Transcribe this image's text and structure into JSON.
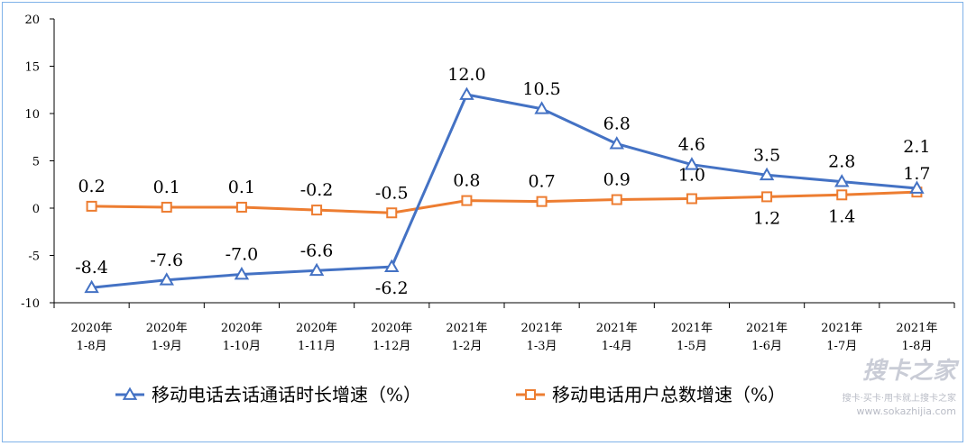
{
  "chart_data": {
    "type": "line",
    "categories": [
      [
        "2020年",
        "1-8月"
      ],
      [
        "2020年",
        "1-9月"
      ],
      [
        "2020年",
        "1-10月"
      ],
      [
        "2020年",
        "1-11月"
      ],
      [
        "2020年",
        "1-12月"
      ],
      [
        "2021年",
        "1-2月"
      ],
      [
        "2021年",
        "1-3月"
      ],
      [
        "2021年",
        "1-4月"
      ],
      [
        "2021年",
        "1-5月"
      ],
      [
        "2021年",
        "1-6月"
      ],
      [
        "2021年",
        "1-7月"
      ],
      [
        "2021年",
        "1-8月"
      ]
    ],
    "yticks": [
      "20",
      "15",
      "10",
      "5",
      "0",
      "-5",
      "-10"
    ],
    "ylim": [
      -10,
      20
    ],
    "series": [
      {
        "name": "移动电话去话通话时长增速（%）",
        "color": "#4472c4",
        "marker": "triangle",
        "values": [
          -8.4,
          -7.6,
          -7.0,
          -6.6,
          -6.2,
          12.0,
          10.5,
          6.8,
          4.6,
          3.5,
          2.8,
          2.1
        ],
        "labels": [
          "-8.4",
          "-7.6",
          "-7.0",
          "-6.6",
          "-6.2",
          "12.0",
          "10.5",
          "6.8",
          "4.6",
          "3.5",
          "2.8",
          "2.1"
        ]
      },
      {
        "name": "移动电话用户总数增速（%）",
        "color": "#ed7d31",
        "marker": "square",
        "values": [
          0.2,
          0.1,
          0.1,
          -0.2,
          -0.5,
          0.8,
          0.7,
          0.9,
          1.0,
          1.2,
          1.4,
          1.7
        ],
        "labels": [
          "0.2",
          "0.1",
          "0.1",
          "-0.2",
          "-0.5",
          "0.8",
          "0.7",
          "0.9",
          "1.0",
          "1.2",
          "1.4",
          "1.7"
        ]
      }
    ],
    "legend": "bottom"
  },
  "watermark": {
    "logo": "搜卡之家",
    "tagline": "搜卡·买卡·用卡就上搜卡之家",
    "url": "www.sokazhijia.com"
  }
}
